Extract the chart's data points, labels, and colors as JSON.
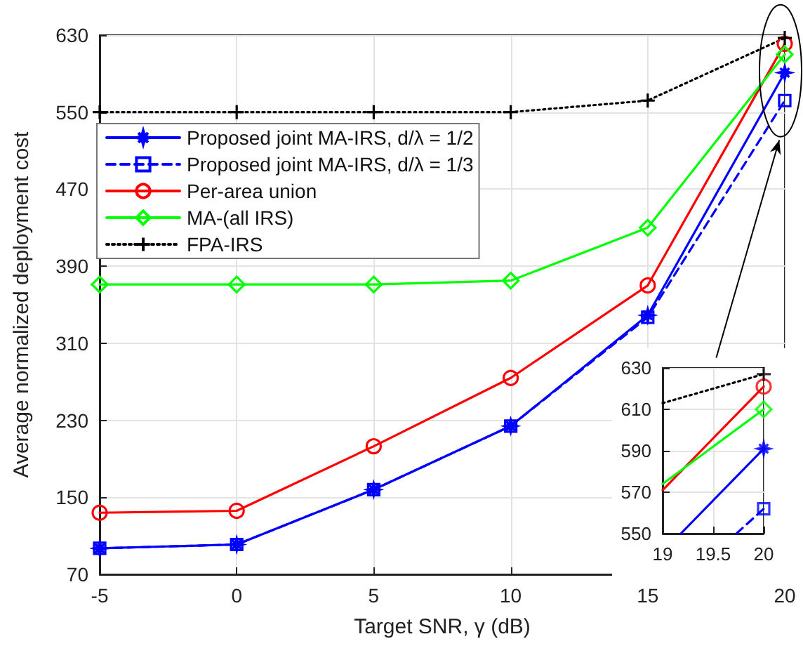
{
  "chart_data": [
    {
      "type": "line",
      "xlabel": "Target SNR, γ (dB)",
      "ylabel": "Average normalized deployment cost",
      "x": [
        -5,
        0,
        5,
        10,
        15,
        20
      ],
      "xlim": [
        -5,
        20
      ],
      "xticks": [
        -5,
        0,
        5,
        10,
        15,
        20
      ],
      "ylim": [
        70,
        630
      ],
      "yticks": [
        70,
        150,
        230,
        310,
        390,
        470,
        550,
        630
      ],
      "grid": true,
      "legend": "top left",
      "series": [
        {
          "name": "Proposed joint MA-IRS, d/λ = 1/2",
          "color": "#0000ff",
          "values": [
            97,
            101,
            158,
            224,
            339,
            591
          ],
          "marker": "star",
          "line_style": "solid"
        },
        {
          "name": "Proposed joint MA-IRS, d/λ = 1/3",
          "color": "#0000ff",
          "values": [
            97,
            101,
            158,
            224,
            337,
            562
          ],
          "marker": "square",
          "line_style": "dashed"
        },
        {
          "name": "Per-area union",
          "color": "#ff0000",
          "values": [
            134,
            136,
            203,
            274,
            370,
            621
          ],
          "marker": "circle",
          "line_style": "solid"
        },
        {
          "name": "MA-(all IRS)",
          "color": "#00ff00",
          "values": [
            371,
            371,
            371,
            375,
            430,
            610
          ],
          "marker": "diamond",
          "line_style": "solid"
        },
        {
          "name": "FPA-IRS",
          "color": "#000000",
          "values": [
            550,
            550,
            550,
            550,
            562,
            627
          ],
          "marker": "cross",
          "line_style": "dotted"
        }
      ]
    },
    {
      "type": "line",
      "xlim": [
        19,
        20
      ],
      "xticks": [
        19,
        19.5,
        20
      ],
      "ylim": [
        550,
        630
      ],
      "yticks": [
        550,
        570,
        590,
        610,
        630
      ],
      "grid": true,
      "series": [
        {
          "color": "#0000ff",
          "x": [
            19.18,
            20
          ],
          "values": [
            550,
            591
          ],
          "marker": "none",
          "line_style": "solid"
        },
        {
          "color": "#0000ff",
          "x": [
            19.73,
            20
          ],
          "values": [
            550,
            562
          ],
          "marker": "none",
          "line_style": "dashed"
        },
        {
          "color": "#ff0000",
          "x": [
            19,
            20
          ],
          "values": [
            571,
            621
          ],
          "marker": "none",
          "line_style": "solid"
        },
        {
          "color": "#00ff00",
          "x": [
            19,
            20
          ],
          "values": [
            574,
            610
          ],
          "marker": "none",
          "line_style": "solid"
        },
        {
          "color": "#000000",
          "x": [
            19,
            20
          ],
          "values": [
            613,
            627
          ],
          "marker": "none",
          "line_style": "dotted"
        },
        {
          "type": "scatter",
          "color": "#0000ff",
          "x": [
            20
          ],
          "values": [
            591
          ],
          "marker": "star"
        },
        {
          "type": "scatter",
          "color": "#0000ff",
          "x": [
            20
          ],
          "values": [
            562
          ],
          "marker": "square"
        },
        {
          "type": "scatter",
          "color": "#ff0000",
          "x": [
            20
          ],
          "values": [
            621
          ],
          "marker": "circle"
        },
        {
          "type": "scatter",
          "color": "#00ff00",
          "x": [
            20
          ],
          "values": [
            610
          ],
          "marker": "diamond"
        },
        {
          "type": "scatter",
          "color": "#000000",
          "x": [
            20
          ],
          "values": [
            627
          ],
          "marker": "cross"
        }
      ]
    }
  ]
}
